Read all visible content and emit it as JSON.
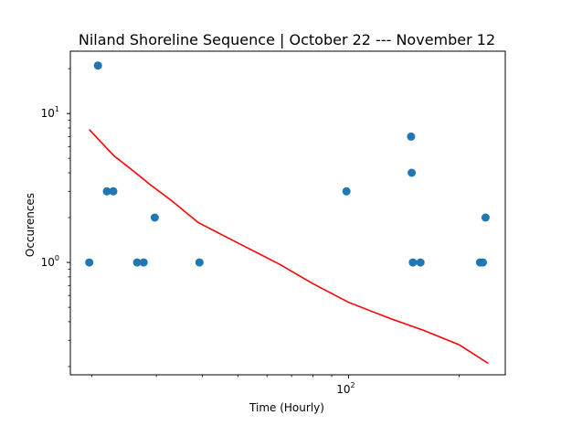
{
  "chart_data": {
    "type": "scatter",
    "title": "Niland Shoreline Sequence | October 22 --- November 12",
    "xlabel": "Time (Hourly)",
    "ylabel": "Occurences",
    "xscale": "log",
    "yscale": "log",
    "xlim": [
      17.5,
      267
    ],
    "ylim": [
      0.176,
      26.2
    ],
    "x_ticks": [
      {
        "value": 100,
        "base": "10",
        "exp": "2"
      }
    ],
    "y_ticks": [
      {
        "value": 10,
        "base": "10",
        "exp": "1"
      },
      {
        "value": 1,
        "base": "10",
        "exp": "0"
      }
    ],
    "grid": false,
    "colors": {
      "points": "#1f77b4",
      "fit": "#ff0000",
      "axes": "#000000"
    },
    "series": [
      {
        "type": "scatter",
        "x": [
          19.7,
          20.8,
          22.0,
          22.9,
          26.6,
          27.7,
          29.7,
          39.3,
          98.7,
          148.0,
          148.6,
          149.7,
          157.0,
          228.0,
          232.0,
          236.0
        ],
        "y": [
          1,
          21,
          3,
          3,
          1,
          1,
          2,
          1,
          3,
          7,
          4,
          1,
          1,
          1,
          1,
          2
        ]
      },
      {
        "type": "line",
        "x": [
          19.7,
          21.0,
          23.0,
          26.0,
          29.0,
          33.0,
          39.0,
          50.0,
          65.0,
          80.0,
          100.0,
          130.0,
          160.0,
          200.0,
          240.0
        ],
        "y": [
          7.8,
          6.6,
          5.2,
          4.1,
          3.3,
          2.6,
          1.85,
          1.35,
          0.97,
          0.72,
          0.54,
          0.42,
          0.35,
          0.28,
          0.21
        ]
      }
    ]
  }
}
